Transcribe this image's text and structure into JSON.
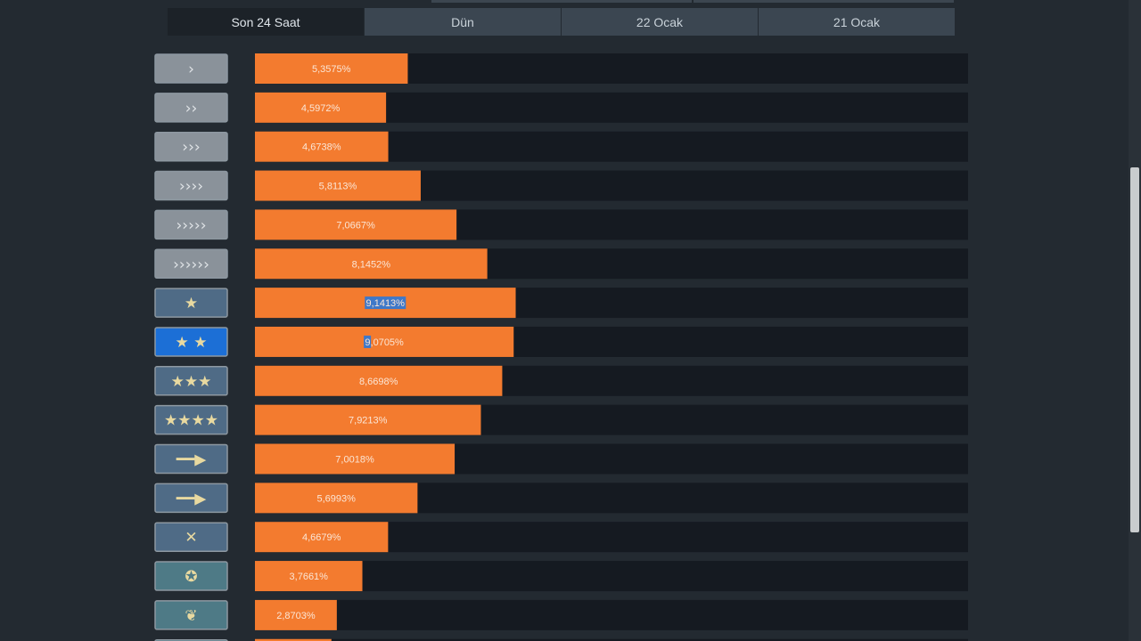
{
  "tabs": [
    {
      "label": "Son 24 Saat",
      "active": true
    },
    {
      "label": "Dün",
      "active": false
    },
    {
      "label": "22 Ocak",
      "active": false
    },
    {
      "label": "21 Ocak",
      "active": false
    }
  ],
  "chart_data": {
    "type": "bar",
    "orientation": "horizontal",
    "categories": [
      "chevron-1-rank-icon",
      "chevron-2-rank-icon",
      "chevron-3-rank-icon",
      "chevron-4-rank-icon",
      "chevron-5-rank-icon",
      "chevron-6-rank-icon",
      "star-1-wreath-rank-icon",
      "star-2-wreath-rank-icon",
      "star-3-wreath-rank-icon",
      "star-4-wreath-rank-icon",
      "rifle-wreath-rank-icon",
      "rifle-wreath-2-rank-icon",
      "crossed-rifles-rank-icon",
      "star-emblem-rank-icon",
      "eagle-rank-icon",
      "partial-rank-icon"
    ],
    "values": [
      5.3575,
      4.5972,
      4.6738,
      5.8113,
      7.0667,
      8.1452,
      9.1413,
      9.0705,
      8.6698,
      7.9213,
      7.0018,
      5.6993,
      4.6679,
      3.7661,
      2.8703,
      2.68
    ],
    "labels": [
      "5,3575%",
      "4,5972%",
      "4,6738%",
      "5,8113%",
      "7,0667%",
      "8,1452%",
      "9,1413%",
      "9,0705%",
      "8,6698%",
      "7,9213%",
      "7,0018%",
      "5,6993%",
      "4,6679%",
      "3,7661%",
      "2,8703%",
      ""
    ],
    "xlim": [
      0,
      25
    ],
    "colors": {
      "bar": "#f37b2f",
      "track": "#151a21",
      "selection": "#3e78c9"
    },
    "grid": false,
    "legend": "none"
  }
}
